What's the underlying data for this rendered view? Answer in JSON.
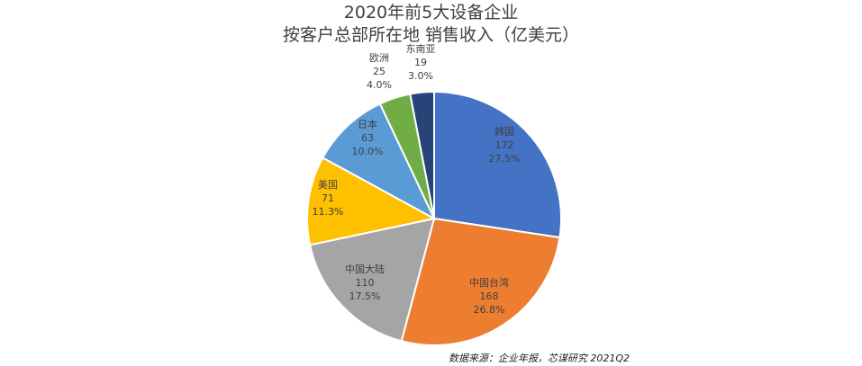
{
  "chart_data": {
    "type": "pie",
    "title_line1": "2020年前5大设备企业",
    "title_line2": "按客户总部所在地 销售收入（亿美元）",
    "slices": [
      {
        "label": "韩国",
        "value": 172,
        "percent": "27.5%",
        "color": "#4472C4"
      },
      {
        "label": "中国台湾",
        "value": 168,
        "percent": "26.8%",
        "color": "#ED7D31"
      },
      {
        "label": "中国大陆",
        "value": 110,
        "percent": "17.5%",
        "color": "#A5A5A5"
      },
      {
        "label": "美国",
        "value": 71,
        "percent": "11.3%",
        "color": "#FFC000"
      },
      {
        "label": "日本",
        "value": 63,
        "percent": "10.0%",
        "color": "#5B9BD5"
      },
      {
        "label": "欧洲",
        "value": 25,
        "percent": "4.0%",
        "color": "#70AD47"
      },
      {
        "label": "东南亚",
        "value": 19,
        "percent": "3.0%",
        "color": "#264478"
      }
    ],
    "legend": "none"
  },
  "source_note": "数据来源：企业年报，芯谋研究 2021Q2"
}
